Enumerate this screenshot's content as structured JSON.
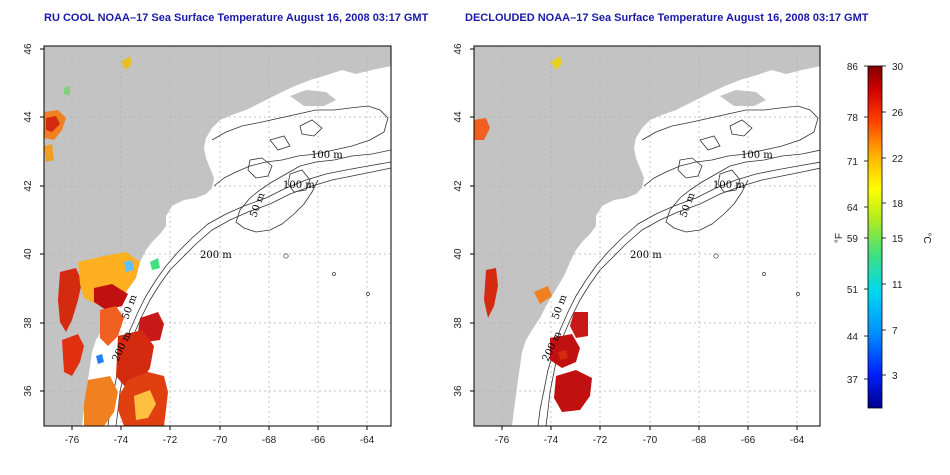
{
  "panels": [
    {
      "title": "RU COOL NOAA–17 Sea Surface Temperature August 16, 2008 03:17 GMT"
    },
    {
      "title": "DECLOUDED NOAA–17 Sea Surface Temperature August 16, 2008 03:17 GMT"
    }
  ],
  "axes": {
    "x_ticks": [
      "-76",
      "-74",
      "-72",
      "-70",
      "-68",
      "-66",
      "-64"
    ],
    "y_ticks": [
      "36",
      "38",
      "40",
      "42",
      "44",
      "46"
    ]
  },
  "contour_labels": [
    "100 m",
    "100 m",
    "50 m",
    "200 m",
    "50 m",
    "200 m"
  ],
  "colorbar": {
    "left_unit": "°F",
    "right_unit": "°C",
    "f_ticks": [
      "86",
      "78",
      "71",
      "64",
      "59",
      "51",
      "44",
      "37"
    ],
    "c_ticks": [
      "30",
      "26",
      "22",
      "18",
      "15",
      "11",
      "7",
      "3"
    ]
  },
  "colors": {
    "land": "#c3c3c3",
    "ocean": "#ffffff",
    "warm": "#d42a10",
    "hot": "#b00c0c",
    "title": "#1a1aa8"
  }
}
